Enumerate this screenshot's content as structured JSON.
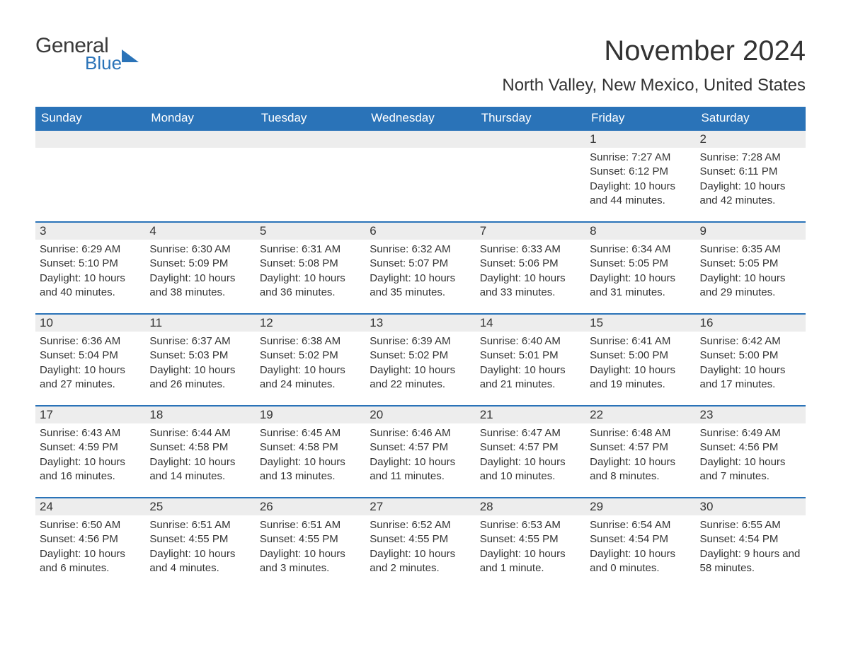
{
  "brand": {
    "text_general": "General",
    "text_blue": "Blue",
    "general_color": "#3a3a3a",
    "blue_color": "#2a73b8"
  },
  "title": {
    "month_year": "November 2024",
    "location": "North Valley, New Mexico, United States",
    "title_fontsize": 40,
    "location_fontsize": 24,
    "text_color": "#333333"
  },
  "calendar": {
    "header_bg": "#2a73b8",
    "header_text_color": "#ffffff",
    "row_border_color": "#2a73b8",
    "daynum_bg": "#ededed",
    "body_text_color": "#333333",
    "background_color": "#ffffff",
    "font_family": "Arial",
    "day_headers": [
      "Sunday",
      "Monday",
      "Tuesday",
      "Wednesday",
      "Thursday",
      "Friday",
      "Saturday"
    ],
    "weeks": [
      [
        null,
        null,
        null,
        null,
        null,
        {
          "n": "1",
          "sunrise": "Sunrise: 7:27 AM",
          "sunset": "Sunset: 6:12 PM",
          "daylight": "Daylight: 10 hours and 44 minutes."
        },
        {
          "n": "2",
          "sunrise": "Sunrise: 7:28 AM",
          "sunset": "Sunset: 6:11 PM",
          "daylight": "Daylight: 10 hours and 42 minutes."
        }
      ],
      [
        {
          "n": "3",
          "sunrise": "Sunrise: 6:29 AM",
          "sunset": "Sunset: 5:10 PM",
          "daylight": "Daylight: 10 hours and 40 minutes."
        },
        {
          "n": "4",
          "sunrise": "Sunrise: 6:30 AM",
          "sunset": "Sunset: 5:09 PM",
          "daylight": "Daylight: 10 hours and 38 minutes."
        },
        {
          "n": "5",
          "sunrise": "Sunrise: 6:31 AM",
          "sunset": "Sunset: 5:08 PM",
          "daylight": "Daylight: 10 hours and 36 minutes."
        },
        {
          "n": "6",
          "sunrise": "Sunrise: 6:32 AM",
          "sunset": "Sunset: 5:07 PM",
          "daylight": "Daylight: 10 hours and 35 minutes."
        },
        {
          "n": "7",
          "sunrise": "Sunrise: 6:33 AM",
          "sunset": "Sunset: 5:06 PM",
          "daylight": "Daylight: 10 hours and 33 minutes."
        },
        {
          "n": "8",
          "sunrise": "Sunrise: 6:34 AM",
          "sunset": "Sunset: 5:05 PM",
          "daylight": "Daylight: 10 hours and 31 minutes."
        },
        {
          "n": "9",
          "sunrise": "Sunrise: 6:35 AM",
          "sunset": "Sunset: 5:05 PM",
          "daylight": "Daylight: 10 hours and 29 minutes."
        }
      ],
      [
        {
          "n": "10",
          "sunrise": "Sunrise: 6:36 AM",
          "sunset": "Sunset: 5:04 PM",
          "daylight": "Daylight: 10 hours and 27 minutes."
        },
        {
          "n": "11",
          "sunrise": "Sunrise: 6:37 AM",
          "sunset": "Sunset: 5:03 PM",
          "daylight": "Daylight: 10 hours and 26 minutes."
        },
        {
          "n": "12",
          "sunrise": "Sunrise: 6:38 AM",
          "sunset": "Sunset: 5:02 PM",
          "daylight": "Daylight: 10 hours and 24 minutes."
        },
        {
          "n": "13",
          "sunrise": "Sunrise: 6:39 AM",
          "sunset": "Sunset: 5:02 PM",
          "daylight": "Daylight: 10 hours and 22 minutes."
        },
        {
          "n": "14",
          "sunrise": "Sunrise: 6:40 AM",
          "sunset": "Sunset: 5:01 PM",
          "daylight": "Daylight: 10 hours and 21 minutes."
        },
        {
          "n": "15",
          "sunrise": "Sunrise: 6:41 AM",
          "sunset": "Sunset: 5:00 PM",
          "daylight": "Daylight: 10 hours and 19 minutes."
        },
        {
          "n": "16",
          "sunrise": "Sunrise: 6:42 AM",
          "sunset": "Sunset: 5:00 PM",
          "daylight": "Daylight: 10 hours and 17 minutes."
        }
      ],
      [
        {
          "n": "17",
          "sunrise": "Sunrise: 6:43 AM",
          "sunset": "Sunset: 4:59 PM",
          "daylight": "Daylight: 10 hours and 16 minutes."
        },
        {
          "n": "18",
          "sunrise": "Sunrise: 6:44 AM",
          "sunset": "Sunset: 4:58 PM",
          "daylight": "Daylight: 10 hours and 14 minutes."
        },
        {
          "n": "19",
          "sunrise": "Sunrise: 6:45 AM",
          "sunset": "Sunset: 4:58 PM",
          "daylight": "Daylight: 10 hours and 13 minutes."
        },
        {
          "n": "20",
          "sunrise": "Sunrise: 6:46 AM",
          "sunset": "Sunset: 4:57 PM",
          "daylight": "Daylight: 10 hours and 11 minutes."
        },
        {
          "n": "21",
          "sunrise": "Sunrise: 6:47 AM",
          "sunset": "Sunset: 4:57 PM",
          "daylight": "Daylight: 10 hours and 10 minutes."
        },
        {
          "n": "22",
          "sunrise": "Sunrise: 6:48 AM",
          "sunset": "Sunset: 4:57 PM",
          "daylight": "Daylight: 10 hours and 8 minutes."
        },
        {
          "n": "23",
          "sunrise": "Sunrise: 6:49 AM",
          "sunset": "Sunset: 4:56 PM",
          "daylight": "Daylight: 10 hours and 7 minutes."
        }
      ],
      [
        {
          "n": "24",
          "sunrise": "Sunrise: 6:50 AM",
          "sunset": "Sunset: 4:56 PM",
          "daylight": "Daylight: 10 hours and 6 minutes."
        },
        {
          "n": "25",
          "sunrise": "Sunrise: 6:51 AM",
          "sunset": "Sunset: 4:55 PM",
          "daylight": "Daylight: 10 hours and 4 minutes."
        },
        {
          "n": "26",
          "sunrise": "Sunrise: 6:51 AM",
          "sunset": "Sunset: 4:55 PM",
          "daylight": "Daylight: 10 hours and 3 minutes."
        },
        {
          "n": "27",
          "sunrise": "Sunrise: 6:52 AM",
          "sunset": "Sunset: 4:55 PM",
          "daylight": "Daylight: 10 hours and 2 minutes."
        },
        {
          "n": "28",
          "sunrise": "Sunrise: 6:53 AM",
          "sunset": "Sunset: 4:55 PM",
          "daylight": "Daylight: 10 hours and 1 minute."
        },
        {
          "n": "29",
          "sunrise": "Sunrise: 6:54 AM",
          "sunset": "Sunset: 4:54 PM",
          "daylight": "Daylight: 10 hours and 0 minutes."
        },
        {
          "n": "30",
          "sunrise": "Sunrise: 6:55 AM",
          "sunset": "Sunset: 4:54 PM",
          "daylight": "Daylight: 9 hours and 58 minutes."
        }
      ]
    ]
  }
}
